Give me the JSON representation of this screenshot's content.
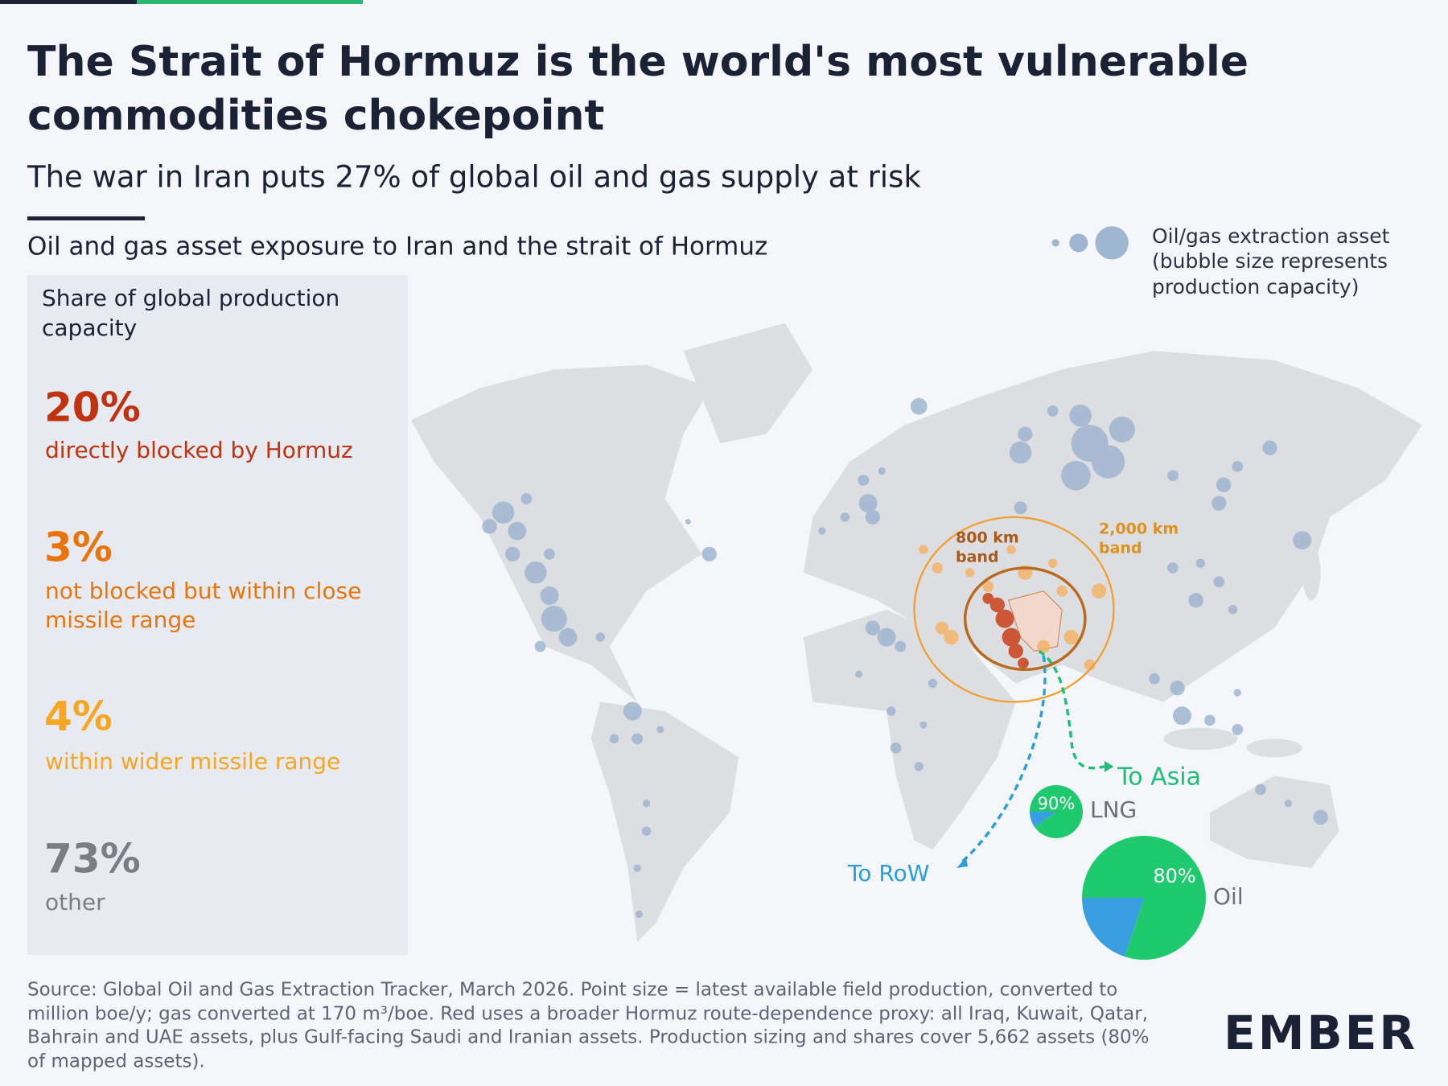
{
  "header": {
    "title_lines": [
      "The Strait of Hormuz is the world's most vulnerable",
      "commodities chokepoint"
    ],
    "subtitle": "The war in Iran puts 27% of global oil and gas supply at risk"
  },
  "section_title": "Oil and gas asset exposure to Iran and the strait of Hormuz",
  "legend": {
    "lines": [
      "Oil/gas extraction asset",
      "(bubble size represents",
      "production capacity)"
    ]
  },
  "panel": {
    "title_lines": [
      "Share of global production",
      "capacity"
    ],
    "items": [
      {
        "value": "20%",
        "lines": [
          "directly blocked by Hormuz"
        ]
      },
      {
        "value": "3%",
        "lines": [
          "not blocked but within close",
          "missile range"
        ]
      },
      {
        "value": "4%",
        "lines": [
          "within wider missile range"
        ]
      },
      {
        "value": "73%",
        "lines": [
          "other"
        ]
      }
    ]
  },
  "map": {
    "band_800": [
      "800 km",
      "band"
    ],
    "band_2000": [
      "2,000 km",
      "band"
    ],
    "to_asia": "To Asia",
    "to_row": "To RoW"
  },
  "chart_data": [
    {
      "type": "pie",
      "title": "LNG",
      "values": [
        90,
        10
      ],
      "value_labels": [
        "90%",
        null
      ],
      "colors": [
        "#1fca6e",
        "#3a9fe0"
      ]
    },
    {
      "type": "pie",
      "title": "Oil",
      "values": [
        80,
        20
      ],
      "value_labels": [
        "80%",
        null
      ],
      "colors": [
        "#1fca6e",
        "#3a9fe0"
      ]
    }
  ],
  "footer": {
    "source_lines": [
      "Source: Global Oil and Gas Extraction Tracker, March 2026. Point size = latest available field production, converted to",
      "million boe/y; gas converted at 170 m³/boe. Red uses a broader Hormuz route-dependence proxy: all Iraq, Kuwait, Qatar,",
      "Bahrain and UAE assets, plus Gulf-facing Saudi and Iranian assets. Production sizing and shares cover 5,662 assets (80%",
      "of mapped assets)."
    ],
    "logo": "EMBER"
  }
}
